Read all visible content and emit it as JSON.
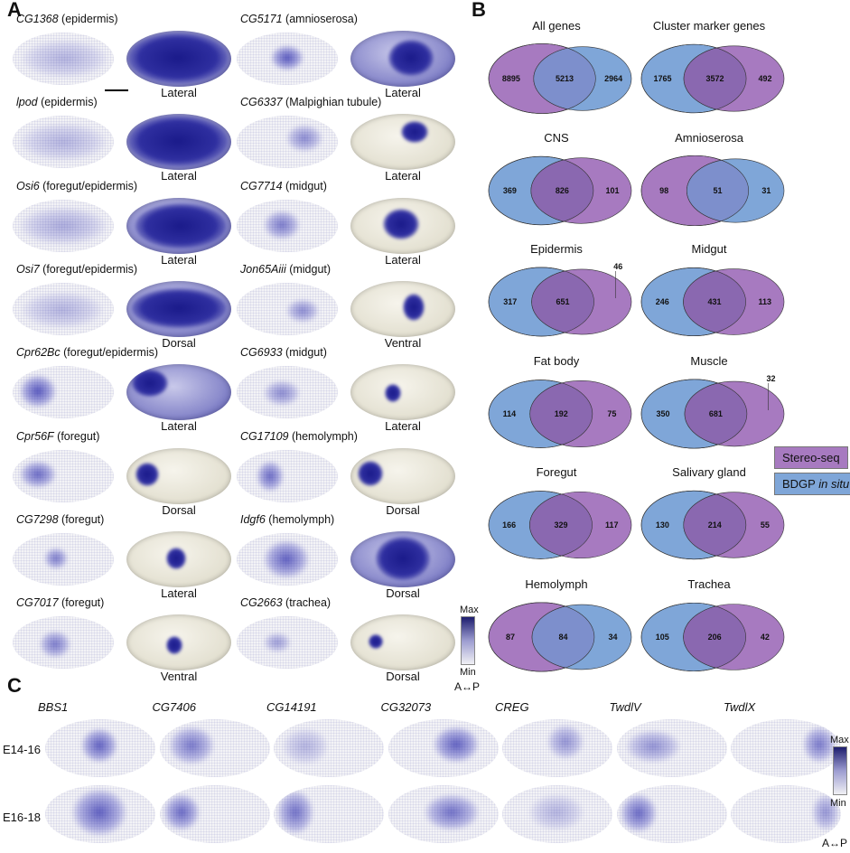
{
  "panels": {
    "a": "A",
    "b": "B",
    "c": "C"
  },
  "panel_a": {
    "genes": [
      {
        "gene": "CG1368",
        "tissue": " (epidermis)",
        "view": "Lateral",
        "stain_blue": true
      },
      {
        "gene": "CG5171",
        "tissue": " (amnioserosa)",
        "view": "Lateral",
        "stain_blue": true
      },
      {
        "gene": "lpod",
        "tissue": " (epidermis)",
        "view": "Lateral",
        "stain_blue": true
      },
      {
        "gene": "CG6337",
        "tissue": " (Malpighian tubule)",
        "view": "Lateral",
        "stain_blue": false
      },
      {
        "gene": "Osi6",
        "tissue": " (foregut/epidermis)",
        "view": "Lateral",
        "stain_blue": true
      },
      {
        "gene": "CG7714",
        "tissue": " (midgut)",
        "view": "Lateral",
        "stain_blue": false
      },
      {
        "gene": "Osi7",
        "tissue": " (foregut/epidermis)",
        "view": "Dorsal",
        "stain_blue": true
      },
      {
        "gene": "Jon65Aiii",
        "tissue": " (midgut)",
        "view": "Ventral",
        "stain_blue": false
      },
      {
        "gene": "Cpr62Bc",
        "tissue": " (foregut/epidermis)",
        "view": "Lateral",
        "stain_blue": true
      },
      {
        "gene": "CG6933",
        "tissue": " (midgut)",
        "view": "Lateral",
        "stain_blue": false
      },
      {
        "gene": "Cpr56F",
        "tissue": " (foregut)",
        "view": "Dorsal",
        "stain_blue": false
      },
      {
        "gene": "CG17109",
        "tissue": " (hemolymph)",
        "view": "Dorsal",
        "stain_blue": false
      },
      {
        "gene": "CG7298",
        "tissue": " (foregut)",
        "view": "Lateral",
        "stain_blue": false
      },
      {
        "gene": "Idgf6",
        "tissue": " (hemolymph)",
        "view": "Dorsal",
        "stain_blue": true
      },
      {
        "gene": "CG7017",
        "tissue": " (foregut)",
        "view": "Ventral",
        "stain_blue": false
      },
      {
        "gene": "CG2663",
        "tissue": " (trachea)",
        "view": "Dorsal",
        "stain_blue": false
      }
    ],
    "colorbar": {
      "max": "Max",
      "min": "Min",
      "axis": "A↔P"
    }
  },
  "panel_b": {
    "venns": [
      {
        "title": "All genes",
        "left": 8895,
        "mid": 5213,
        "right": 2964,
        "big": "stereo"
      },
      {
        "title": "Cluster marker genes",
        "left": 1765,
        "mid": 3572,
        "right": 492,
        "big": "bdgp"
      },
      {
        "title": "CNS",
        "left": 369,
        "mid": 826,
        "right": 101,
        "big": "bdgp"
      },
      {
        "title": "Amnioserosa",
        "left": 98,
        "mid": 51,
        "right": 31,
        "big": "stereo"
      },
      {
        "title": "Epidermis",
        "left": 317,
        "mid": 651,
        "right": 46,
        "big": "bdgp",
        "callout": true
      },
      {
        "title": "Midgut",
        "left": 246,
        "mid": 431,
        "right": 113,
        "big": "bdgp"
      },
      {
        "title": "Fat body",
        "left": 114,
        "mid": 192,
        "right": 75,
        "big": "bdgp"
      },
      {
        "title": "Muscle",
        "left": 350,
        "mid": 681,
        "right": 32,
        "big": "bdgp",
        "callout": true
      },
      {
        "title": "Foregut",
        "left": 166,
        "mid": 329,
        "right": 117,
        "big": "bdgp"
      },
      {
        "title": "Salivary gland",
        "left": 130,
        "mid": 214,
        "right": 55,
        "big": "bdgp"
      },
      {
        "title": "Hemolymph",
        "left": 87,
        "mid": 84,
        "right": 34,
        "big": "stereo"
      },
      {
        "title": "Trachea",
        "left": 105,
        "mid": 206,
        "right": 42,
        "big": "bdgp"
      }
    ],
    "legend": {
      "stereo": "Stereo-seq",
      "bdgp_main": "BDGP ",
      "bdgp_italic": "in situ"
    },
    "colors": {
      "stereo": "#a77ac0",
      "bdgp": "#7fa6d8",
      "overlap_stereo_big": "#7d8fcc",
      "overlap_bdgp_big": "#8a68b0"
    }
  },
  "panel_c": {
    "genes": [
      "BBS1",
      "CG7406",
      "CG14191",
      "CG32073",
      "CREG",
      "TwdlV",
      "TwdlX"
    ],
    "rows": [
      "E14-16",
      "E16-18"
    ],
    "colorbar": {
      "max": "Max",
      "min": "Min",
      "axis": "A↔P"
    }
  }
}
